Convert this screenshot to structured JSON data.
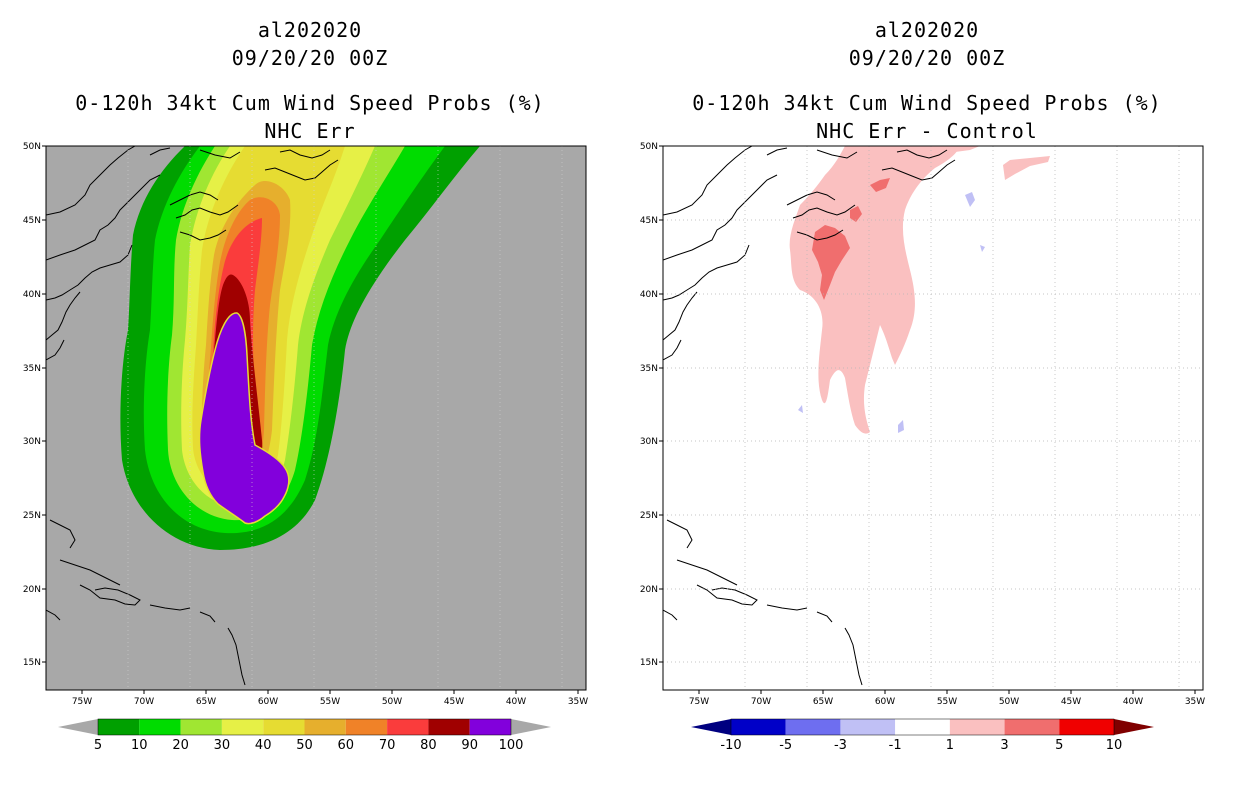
{
  "panels": [
    {
      "id": "left",
      "title_lines": [
        "al202020",
        "09/20/20 00Z",
        "0-120h 34kt Cum Wind Speed Probs (%)",
        "NHC Err"
      ],
      "map_background": "#a8a8a8",
      "colorbar": {
        "labels": [
          "5",
          "10",
          "20",
          "30",
          "40",
          "50",
          "60",
          "70",
          "80",
          "90",
          "100"
        ],
        "colors": [
          "#00a000",
          "#00dc00",
          "#a0e632",
          "#e6f046",
          "#e6dc32",
          "#e6af2d",
          "#f08228",
          "#fa3c3c",
          "#a00000",
          "#8200dc"
        ],
        "end_color": "#a8a8a8"
      }
    },
    {
      "id": "right",
      "title_lines": [
        "al202020",
        "09/20/20 00Z",
        "0-120h 34kt Cum Wind Speed Probs (%)",
        "NHC Err - Control"
      ],
      "map_background": "#ffffff",
      "colorbar": {
        "labels": [
          "-10",
          "-5",
          "-3",
          "-1",
          "1",
          "3",
          "5",
          "10"
        ],
        "colors": [
          "#0000c8",
          "#6e6ef0",
          "#c0c0f5",
          "#ffffff",
          "#fac0c0",
          "#f06e6e",
          "#f00000"
        ],
        "end_color_low": "#000080",
        "end_color_high": "#800000"
      }
    }
  ],
  "axes": {
    "lat_labels": [
      "50N",
      "45N",
      "40N",
      "35N",
      "30N",
      "25N",
      "20N",
      "15N"
    ],
    "lon_labels": [
      "75W",
      "70W",
      "65W",
      "60W",
      "55W",
      "50W",
      "45W",
      "40W",
      "35W"
    ]
  }
}
